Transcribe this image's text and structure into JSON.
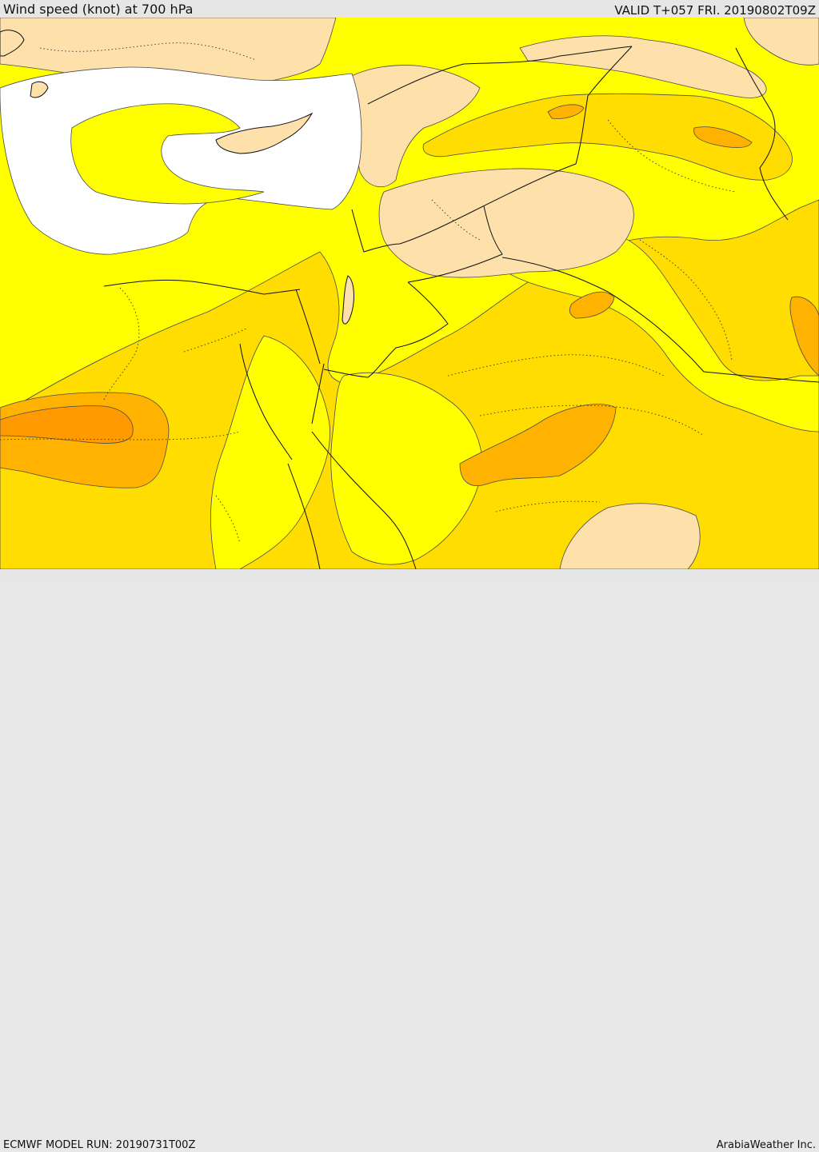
{
  "header": {
    "title": "Wind speed (knot) at 700 hPa",
    "valid": "VALID T+057 FRI. 20190802T09Z"
  },
  "footer": {
    "model_run": "ECMWF MODEL RUN: 20190731T00Z",
    "brand": "ArabiaWeather Inc."
  },
  "colors": {
    "sea": "#ffffff",
    "calm": "#fde0aa",
    "light": "#ffff00",
    "moderate": "#ffdd00",
    "strong": "#ffb300",
    "stronger": "#ff9a00",
    "contour": "#4a4a4a",
    "border": "#111111"
  }
}
